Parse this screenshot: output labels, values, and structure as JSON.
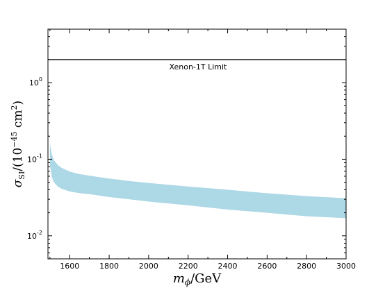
{
  "chart_data": {
    "type": "area",
    "title": "",
    "xlabel": {
      "var": "m",
      "sub": "ϕ",
      "unit": "/GeV"
    },
    "ylabel": {
      "var": "σ",
      "sub": "SI",
      "unit": "/(10",
      "exp": "−45",
      "unit2": " cm",
      "exp2": "2",
      "close": ")"
    },
    "xlim": [
      1490,
      3000
    ],
    "ylim": [
      0.005,
      5
    ],
    "yscale": "log",
    "xticks": [
      1600,
      1800,
      2000,
      2200,
      2400,
      2600,
      2800,
      3000
    ],
    "yticks": [
      {
        "value": 0.01,
        "mantissa": "10",
        "exp": "-2"
      },
      {
        "value": 0.1,
        "mantissa": "10",
        "exp": "-1"
      },
      {
        "value": 1,
        "mantissa": "10",
        "exp": "0"
      }
    ],
    "limit_line": {
      "name": "Xenon-1T Limit",
      "value": 2.0,
      "color": "#000000"
    },
    "band": {
      "color": "#add8e6",
      "x": [
        1500,
        1510,
        1520,
        1540,
        1560,
        1600,
        1650,
        1700,
        1800,
        1900,
        2000,
        2200,
        2400,
        2600,
        2800,
        3000
      ],
      "upper": [
        0.16,
        0.115,
        0.097,
        0.084,
        0.077,
        0.069,
        0.064,
        0.061,
        0.056,
        0.052,
        0.049,
        0.044,
        0.04,
        0.036,
        0.033,
        0.031
      ],
      "lower": [
        0.085,
        0.058,
        0.05,
        0.044,
        0.041,
        0.038,
        0.036,
        0.035,
        0.032,
        0.03,
        0.028,
        0.025,
        0.022,
        0.02,
        0.018,
        0.017
      ]
    }
  }
}
